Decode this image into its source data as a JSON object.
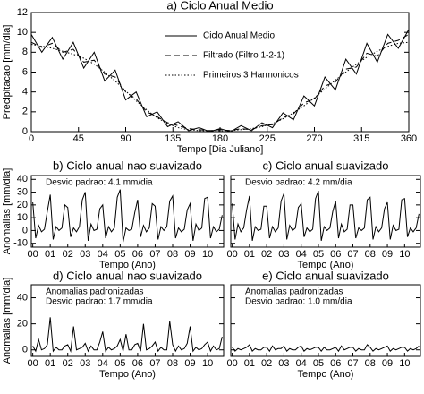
{
  "chart_data": [
    {
      "type": "line",
      "title": "a) Ciclo Anual Medio",
      "xlabel": "Tempo [Dia Juliano]",
      "ylabel": "Precipitacao [mm/dia]",
      "x": [
        0,
        10,
        20,
        30,
        40,
        50,
        60,
        70,
        80,
        90,
        100,
        110,
        120,
        130,
        140,
        150,
        160,
        170,
        180,
        190,
        200,
        210,
        220,
        230,
        240,
        250,
        260,
        270,
        280,
        290,
        300,
        310,
        320,
        330,
        340,
        350,
        360
      ],
      "series": [
        {
          "name": "Ciclo Anual Medio",
          "color": "#000000",
          "line_style": "solid",
          "values": [
            9.8,
            8.0,
            9.5,
            7.3,
            9.0,
            6.4,
            8.0,
            5.1,
            6.2,
            3.2,
            4.0,
            1.5,
            2.0,
            0.5,
            1.0,
            0.1,
            0.4,
            0.0,
            0.3,
            0.0,
            0.6,
            0.1,
            0.9,
            0.4,
            1.9,
            1.2,
            3.6,
            2.6,
            5.5,
            4.2,
            7.3,
            5.8,
            8.9,
            7.0,
            9.8,
            8.4,
            10.3
          ]
        },
        {
          "name": "Filtrado (Filtro 1-2-1)",
          "color": "#000000",
          "line_style": "dashed",
          "values": [
            9.0,
            8.5,
            8.9,
            8.0,
            8.3,
            7.0,
            7.2,
            5.8,
            5.5,
            4.0,
            3.3,
            2.0,
            1.5,
            0.9,
            0.6,
            0.3,
            0.2,
            0.1,
            0.2,
            0.1,
            0.3,
            0.2,
            0.6,
            0.7,
            1.4,
            1.8,
            2.9,
            3.3,
            4.6,
            5.0,
            6.3,
            6.5,
            7.9,
            7.6,
            8.9,
            9.2,
            9.8
          ]
        },
        {
          "name": "Primeiros 3 Harmonicos",
          "color": "#000000",
          "line_style": "dotted",
          "values": [
            8.8,
            8.6,
            8.4,
            8.1,
            7.8,
            7.4,
            6.8,
            6.0,
            5.1,
            4.1,
            3.1,
            2.2,
            1.4,
            0.8,
            0.4,
            0.2,
            0.1,
            0.1,
            0.1,
            0.1,
            0.2,
            0.3,
            0.5,
            0.8,
            1.3,
            1.9,
            2.6,
            3.4,
            4.3,
            5.2,
            6.0,
            6.8,
            7.5,
            8.1,
            8.6,
            8.9,
            9.0
          ]
        }
      ],
      "xlim": [
        0,
        360
      ],
      "xticks": [
        0,
        45,
        90,
        135,
        180,
        225,
        270,
        315,
        360
      ],
      "ylim": [
        0,
        12
      ],
      "yticks": [
        0,
        2,
        4,
        6,
        8,
        10,
        12
      ],
      "tick_labels": true
    },
    {
      "type": "line",
      "title": "b) Ciclo anual nao suavizado",
      "xlabel": "Tempo (Ano)",
      "ylabel": "Anomalias [mm/dia]",
      "annotations": [
        "Desvio padrao: 4.1 mm/dia"
      ],
      "categories": [
        "00",
        null,
        null,
        null,
        null,
        null,
        "01",
        null,
        null,
        null,
        null,
        null,
        "02",
        null,
        null,
        null,
        null,
        null,
        "03",
        null,
        null,
        null,
        null,
        null,
        "04",
        null,
        null,
        null,
        null,
        null,
        "05",
        null,
        null,
        null,
        null,
        null,
        "06",
        null,
        null,
        null,
        null,
        null,
        "07",
        null,
        null,
        null,
        null,
        null,
        "08",
        null,
        null,
        null,
        null,
        null,
        "09",
        null,
        null,
        null,
        null,
        null,
        "10",
        null,
        null,
        null,
        null,
        null
      ],
      "series": [
        {
          "name": null,
          "color": "#000000",
          "line_style": "solid",
          "values": [
            22,
            -6,
            4,
            -1,
            1,
            15,
            28,
            -7,
            3,
            0,
            2,
            20,
            18,
            -5,
            2,
            -1,
            3,
            24,
            30,
            -8,
            5,
            0,
            1,
            17,
            20,
            -6,
            3,
            -1,
            2,
            26,
            32,
            -9,
            2,
            0,
            1,
            14,
            24,
            -5,
            4,
            -1,
            2,
            21,
            19,
            -7,
            3,
            0,
            3,
            23,
            27,
            -6,
            2,
            -1,
            1,
            16,
            21,
            -8,
            5,
            0,
            2,
            25,
            26,
            -6,
            3,
            -1,
            1,
            12
          ]
        }
      ],
      "ylim": [
        -13,
        43
      ],
      "yticks": [
        -10,
        0,
        10,
        20,
        30,
        40
      ],
      "tick_labels": true
    },
    {
      "type": "line",
      "title": "c) Ciclo anual suavizado",
      "xlabel": "Tempo (Ano)",
      "annotations": [
        "Desvio padrao: 4.2 mm/dia"
      ],
      "categories": [
        "00",
        null,
        null,
        null,
        null,
        null,
        "01",
        null,
        null,
        null,
        null,
        null,
        "02",
        null,
        null,
        null,
        null,
        null,
        "03",
        null,
        null,
        null,
        null,
        null,
        "04",
        null,
        null,
        null,
        null,
        null,
        "05",
        null,
        null,
        null,
        null,
        null,
        "06",
        null,
        null,
        null,
        null,
        null,
        "07",
        null,
        null,
        null,
        null,
        null,
        "08",
        null,
        null,
        null,
        null,
        null,
        "09",
        null,
        null,
        null,
        null,
        null,
        "10",
        null,
        null,
        null,
        null,
        null
      ],
      "series": [
        {
          "name": null,
          "color": "#000000",
          "line_style": "solid",
          "values": [
            21,
            -7,
            5,
            -1,
            2,
            16,
            27,
            -8,
            3,
            0,
            1,
            19,
            19,
            -6,
            3,
            -1,
            2,
            23,
            29,
            -7,
            4,
            0,
            2,
            18,
            21,
            -5,
            2,
            -1,
            1,
            25,
            31,
            -8,
            3,
            0,
            2,
            15,
            23,
            -6,
            5,
            -1,
            1,
            20,
            20,
            -6,
            2,
            0,
            2,
            24,
            26,
            -7,
            3,
            -1,
            2,
            17,
            22,
            -7,
            4,
            0,
            1,
            24,
            25,
            -5,
            2,
            -1,
            2,
            13
          ]
        }
      ],
      "ylim": [
        -13,
        43
      ],
      "yticks": [
        -10,
        0,
        10,
        20,
        30,
        40
      ],
      "tick_labels": false
    },
    {
      "type": "line",
      "title": "d) Ciclo anual nao suavizado",
      "xlabel": "Tempo (Ano)",
      "ylabel": "Anomalias [mm/dia]",
      "annotations": [
        "Anomalias padronizadas",
        "Desvio padrao: 1.7 mm/dia"
      ],
      "categories": [
        "00",
        null,
        null,
        null,
        null,
        null,
        "01",
        null,
        null,
        null,
        null,
        null,
        "02",
        null,
        null,
        null,
        null,
        null,
        "03",
        null,
        null,
        null,
        null,
        null,
        "04",
        null,
        null,
        null,
        null,
        null,
        "05",
        null,
        null,
        null,
        null,
        null,
        "06",
        null,
        null,
        null,
        null,
        null,
        "07",
        null,
        null,
        null,
        null,
        null,
        "08",
        null,
        null,
        null,
        null,
        null,
        "09",
        null,
        null,
        null,
        null,
        null,
        "10",
        null,
        null,
        null,
        null,
        null
      ],
      "series": [
        {
          "name": null,
          "color": "#000000",
          "line_style": "solid",
          "values": [
            3,
            -1,
            8,
            0,
            1,
            4,
            25,
            -1,
            2,
            0,
            0,
            3,
            4,
            -1,
            18,
            0,
            1,
            2,
            5,
            -1,
            3,
            0,
            0,
            6,
            14,
            -1,
            2,
            0,
            1,
            3,
            8,
            -1,
            12,
            0,
            0,
            4,
            5,
            -1,
            20,
            0,
            1,
            3,
            6,
            -1,
            2,
            0,
            0,
            22,
            4,
            -1,
            3,
            0,
            1,
            5,
            18,
            -1,
            2,
            0,
            1,
            4,
            6,
            -1,
            3,
            0,
            1,
            10
          ]
        }
      ],
      "ylim": [
        -5,
        50
      ],
      "yticks": [
        0,
        20,
        40
      ],
      "tick_labels": true
    },
    {
      "type": "line",
      "title": "e) Ciclo anual suavizado",
      "xlabel": "Tempo (Ano)",
      "annotations": [
        "Anomalias padronizadas",
        "Desvio padrao: 1.0 mm/dia"
      ],
      "categories": [
        "00",
        null,
        null,
        null,
        null,
        null,
        "01",
        null,
        null,
        null,
        null,
        null,
        "02",
        null,
        null,
        null,
        null,
        null,
        "03",
        null,
        null,
        null,
        null,
        null,
        "04",
        null,
        null,
        null,
        null,
        null,
        "05",
        null,
        null,
        null,
        null,
        null,
        "06",
        null,
        null,
        null,
        null,
        null,
        "07",
        null,
        null,
        null,
        null,
        null,
        "08",
        null,
        null,
        null,
        null,
        null,
        "09",
        null,
        null,
        null,
        null,
        null,
        "10",
        null,
        null,
        null,
        null,
        null
      ],
      "series": [
        {
          "name": null,
          "color": "#000000",
          "line_style": "solid",
          "values": [
            2,
            -1,
            1,
            0,
            1,
            2,
            4,
            -1,
            1,
            0,
            0,
            2,
            2,
            -1,
            3,
            0,
            1,
            1,
            3,
            -1,
            1,
            0,
            0,
            2,
            3,
            -1,
            1,
            0,
            1,
            2,
            2,
            -1,
            2,
            0,
            0,
            1,
            2,
            -1,
            3,
            0,
            1,
            2,
            2,
            -1,
            1,
            0,
            0,
            4,
            2,
            -1,
            1,
            0,
            1,
            2,
            3,
            -1,
            1,
            0,
            1,
            2,
            2,
            -1,
            1,
            0,
            1,
            3
          ]
        }
      ],
      "ylim": [
        -5,
        50
      ],
      "yticks": [
        0,
        20,
        40
      ],
      "tick_labels": false
    }
  ]
}
